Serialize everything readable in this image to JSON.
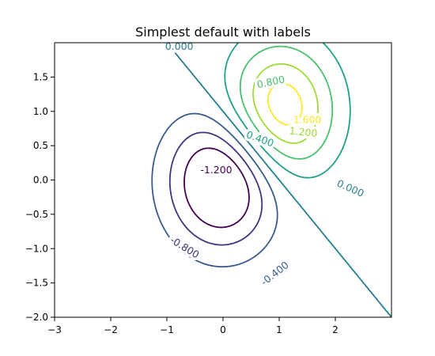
{
  "chart_data": {
    "type": "contour",
    "title": "Simplest default with labels",
    "xlabel": "",
    "ylabel": "",
    "xlim": [
      -3,
      3
    ],
    "ylim": [
      -2,
      2
    ],
    "x_ticks": [
      -3,
      -2,
      -1,
      0,
      1,
      2
    ],
    "y_ticks": [
      -2.0,
      -1.5,
      -1.0,
      -0.5,
      0.0,
      0.5,
      1.0,
      1.5
    ],
    "x_tick_labels": [
      "−3",
      "−2",
      "−1",
      "0",
      "1",
      "2"
    ],
    "y_tick_labels": [
      "−2.0",
      "−1.5",
      "−1.0",
      "−0.5",
      "0.0",
      "0.5",
      "1.0",
      "1.5"
    ],
    "function": "Z = 2 * (exp(-x^2 - y^2) - exp(-(x-1)^2 - (y-1)^2)) * -1",
    "levels": [
      -1.2,
      -0.8,
      -0.4,
      0.0,
      0.4,
      0.8,
      1.2,
      1.6
    ],
    "level_labels": [
      "-1.200",
      "-0.800",
      "-0.400",
      "0.000",
      "0.400",
      "0.800",
      "1.200",
      "1.600"
    ],
    "colormap": "viridis",
    "level_colors": [
      "#440154",
      "#46327e",
      "#365c8d",
      "#277f8e",
      "#1fa187",
      "#4ac16d",
      "#a0da39",
      "#fde725"
    ],
    "grid": false
  }
}
